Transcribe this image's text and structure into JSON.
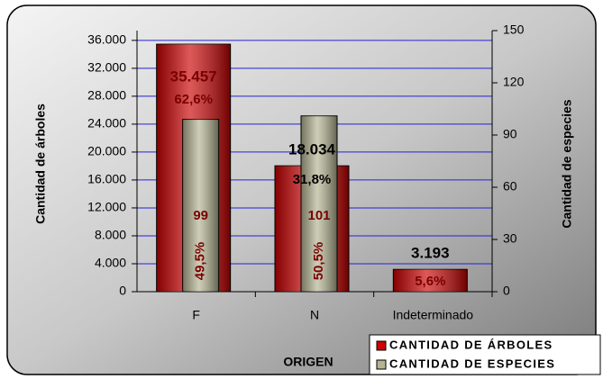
{
  "chart_data": {
    "type": "bar",
    "x_label": "ORIGEN",
    "y_label": "Cantidad de árboles",
    "y2_label": "Cantidad de especies",
    "categories": [
      "F",
      "N",
      "Indeterminado"
    ],
    "series": [
      {
        "name": "CANTIDAD DE ÁRBOLES",
        "color": "#cc0000",
        "values": [
          35457,
          18034,
          3193
        ],
        "value_labels": [
          "35.457",
          "18.034",
          "3.193"
        ],
        "percent_labels": [
          "62,6%",
          "31,8%",
          "5,6%"
        ]
      },
      {
        "name": "CANTIDAD DE ESPECIES",
        "color": "#b4b492",
        "axis": "y2",
        "values": [
          99,
          101,
          null
        ],
        "percent_labels": [
          "49,5%",
          "50,5%",
          null
        ]
      }
    ],
    "ylim": [
      0,
      37400
    ],
    "yticks": [
      0,
      {
        "value": 4000,
        "label": "4.000"
      },
      {
        "value": 8000,
        "label": "8.000"
      },
      {
        "value": 12000,
        "label": "12.000"
      },
      {
        "value": 16000,
        "label": "16.000"
      },
      {
        "value": 20000,
        "label": "20.000"
      },
      {
        "value": 24000,
        "label": "24.000"
      },
      {
        "value": 28000,
        "label": "28.000"
      },
      {
        "value": 32000,
        "label": "32.000"
      },
      {
        "value": 36000,
        "label": "36.000"
      }
    ],
    "y2lim": [
      0,
      150
    ],
    "y2ticks": [
      0,
      30,
      60,
      90,
      120,
      150
    ],
    "grid": true,
    "grid_color": "#2323d8",
    "legend": "lower right"
  }
}
